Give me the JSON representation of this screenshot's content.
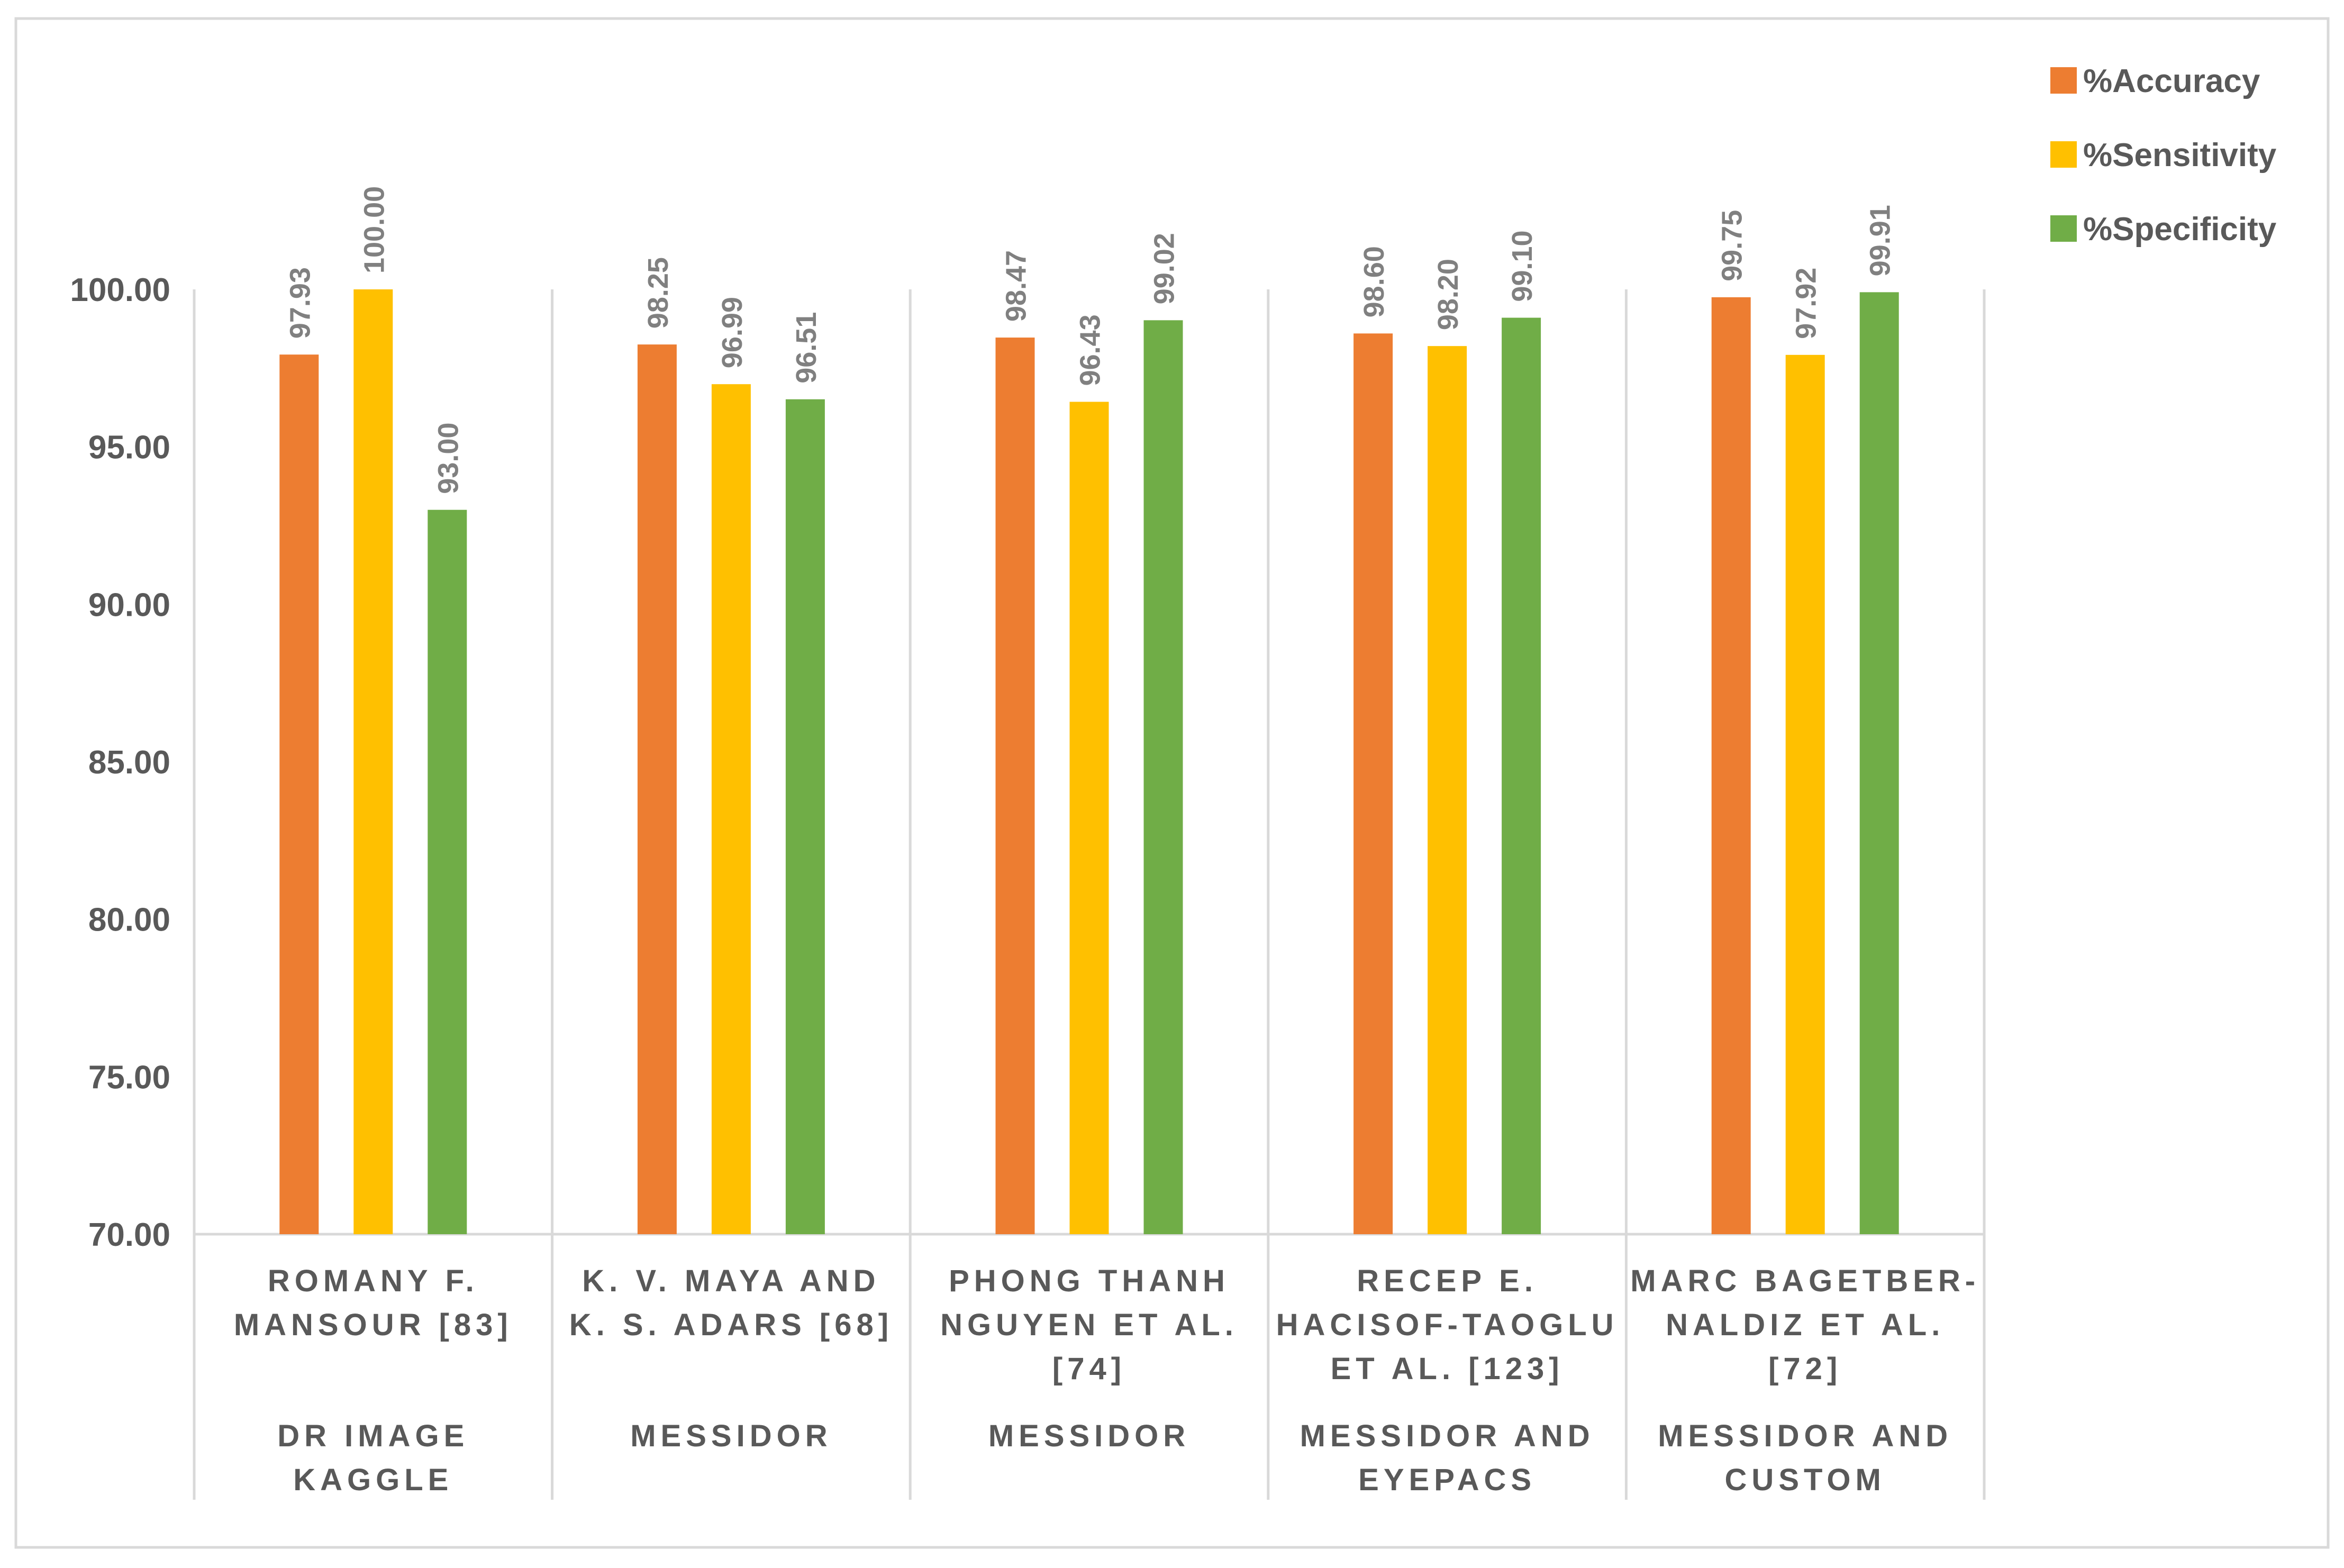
{
  "chart_data": {
    "type": "bar",
    "title": "",
    "xlabel": "",
    "ylabel": "",
    "ylim": [
      70,
      100
    ],
    "yticks": [
      "70.00",
      "75.00",
      "80.00",
      "85.00",
      "90.00",
      "95.00",
      "100.00"
    ],
    "ytick_values": [
      70,
      75,
      80,
      85,
      90,
      95,
      100
    ],
    "grid": false,
    "legend_position": "top-right",
    "categories": [
      {
        "author_lines": [
          "ROMANY F.",
          "MANSOUR [83]"
        ],
        "dataset_lines": [
          "DR IMAGE",
          "KAGGLE"
        ]
      },
      {
        "author_lines": [
          "K. V. MAYA AND",
          "K. S. ADARS [68]"
        ],
        "dataset_lines": [
          "MESSIDOR"
        ]
      },
      {
        "author_lines": [
          "PHONG THANH",
          "NGUYEN ET AL.",
          "[74]"
        ],
        "dataset_lines": [
          "MESSIDOR"
        ]
      },
      {
        "author_lines": [
          "RECEP E.",
          "HACISOF-TAOGLU",
          "ET AL. [123]"
        ],
        "dataset_lines": [
          "MESSIDOR AND",
          "EYEPACS"
        ]
      },
      {
        "author_lines": [
          "MARC BAGETBER-",
          "NALDIZ ET AL.",
          "[72]"
        ],
        "dataset_lines": [
          "MESSIDOR AND",
          "CUSTOM"
        ]
      }
    ],
    "series": [
      {
        "name": "%Accuracy",
        "color": "#ED7D31",
        "values": [
          97.93,
          98.25,
          98.47,
          98.6,
          99.75
        ],
        "labels": [
          "97.93",
          "98.25",
          "98.47",
          "98.60",
          "99.75"
        ]
      },
      {
        "name": "%Sensitivity",
        "color": "#FFC000",
        "values": [
          100.0,
          96.99,
          96.43,
          98.2,
          97.92
        ],
        "labels": [
          "100.00",
          "96.99",
          "96.43",
          "98.20",
          "97.92"
        ]
      },
      {
        "name": "%Specificity",
        "color": "#70AD47",
        "values": [
          93.0,
          96.51,
          99.02,
          99.1,
          99.91
        ],
        "labels": [
          "93.00",
          "96.51",
          "99.02",
          "99.10",
          "99.91"
        ]
      }
    ]
  }
}
